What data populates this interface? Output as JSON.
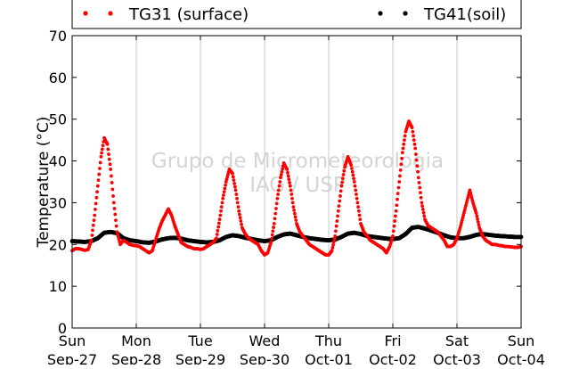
{
  "chart_data": {
    "type": "scatter",
    "ylabel": "Temperature (°C)",
    "ylim": [
      0,
      70
    ],
    "yticks": [
      0,
      10,
      20,
      30,
      40,
      50,
      60,
      70
    ],
    "xlim_days": [
      0,
      7
    ],
    "xtick_labels": [
      {
        "day": "Sun",
        "date": "Sep-27"
      },
      {
        "day": "Mon",
        "date": "Sep-28"
      },
      {
        "day": "Tue",
        "date": "Sep-29"
      },
      {
        "day": "Wed",
        "date": "Sep-30"
      },
      {
        "day": "Thu",
        "date": "Oct-01"
      },
      {
        "day": "Fri",
        "date": "Oct-02"
      },
      {
        "day": "Sat",
        "date": "Oct-03"
      },
      {
        "day": "Sun",
        "date": "Oct-04"
      }
    ],
    "grid": "vertical",
    "legend_placement": "top",
    "watermark": [
      "Grupo de Micrometeorologia",
      "IAG / USP"
    ],
    "series": [
      {
        "name": "TG31 (surface)",
        "color": "#ff0000",
        "points": [
          [
            0.0,
            18.5
          ],
          [
            0.05,
            19.0
          ],
          [
            0.1,
            19.0
          ],
          [
            0.15,
            18.8
          ],
          [
            0.2,
            18.6
          ],
          [
            0.25,
            18.8
          ],
          [
            0.3,
            21.0
          ],
          [
            0.35,
            27.0
          ],
          [
            0.4,
            34.0
          ],
          [
            0.45,
            41.0
          ],
          [
            0.5,
            45.5
          ],
          [
            0.55,
            44.0
          ],
          [
            0.6,
            38.0
          ],
          [
            0.65,
            30.0
          ],
          [
            0.7,
            23.0
          ],
          [
            0.75,
            20.0
          ],
          [
            0.8,
            21.0
          ],
          [
            0.85,
            20.5
          ],
          [
            0.9,
            20.0
          ],
          [
            0.95,
            19.8
          ],
          [
            1.0,
            19.7
          ],
          [
            1.05,
            19.5
          ],
          [
            1.1,
            19.0
          ],
          [
            1.15,
            18.5
          ],
          [
            1.2,
            18.0
          ],
          [
            1.25,
            18.5
          ],
          [
            1.3,
            21.0
          ],
          [
            1.35,
            23.5
          ],
          [
            1.4,
            25.5
          ],
          [
            1.45,
            27.0
          ],
          [
            1.5,
            28.5
          ],
          [
            1.55,
            27.0
          ],
          [
            1.6,
            24.5
          ],
          [
            1.65,
            22.5
          ],
          [
            1.7,
            20.5
          ],
          [
            1.75,
            20.0
          ],
          [
            1.8,
            19.5
          ],
          [
            1.85,
            19.3
          ],
          [
            1.9,
            19.0
          ],
          [
            1.95,
            19.0
          ],
          [
            2.0,
            18.8
          ],
          [
            2.05,
            19.0
          ],
          [
            2.1,
            19.5
          ],
          [
            2.15,
            20.0
          ],
          [
            2.2,
            20.5
          ],
          [
            2.25,
            21.5
          ],
          [
            2.3,
            26.0
          ],
          [
            2.35,
            31.0
          ],
          [
            2.4,
            35.0
          ],
          [
            2.45,
            38.0
          ],
          [
            2.5,
            37.0
          ],
          [
            2.55,
            33.0
          ],
          [
            2.6,
            28.0
          ],
          [
            2.65,
            24.0
          ],
          [
            2.7,
            22.5
          ],
          [
            2.75,
            21.5
          ],
          [
            2.8,
            21.0
          ],
          [
            2.85,
            20.5
          ],
          [
            2.9,
            20.0
          ],
          [
            2.95,
            18.5
          ],
          [
            3.0,
            17.5
          ],
          [
            3.05,
            18.0
          ],
          [
            3.1,
            20.5
          ],
          [
            3.15,
            25.0
          ],
          [
            3.2,
            31.0
          ],
          [
            3.25,
            36.0
          ],
          [
            3.3,
            39.5
          ],
          [
            3.35,
            38.0
          ],
          [
            3.4,
            34.0
          ],
          [
            3.45,
            29.0
          ],
          [
            3.5,
            25.0
          ],
          [
            3.55,
            23.0
          ],
          [
            3.6,
            22.0
          ],
          [
            3.65,
            21.0
          ],
          [
            3.7,
            20.0
          ],
          [
            3.75,
            19.5
          ],
          [
            3.8,
            19.0
          ],
          [
            3.85,
            18.5
          ],
          [
            3.9,
            18.0
          ],
          [
            3.95,
            17.5
          ],
          [
            4.0,
            17.5
          ],
          [
            4.05,
            18.5
          ],
          [
            4.1,
            22.0
          ],
          [
            4.15,
            28.0
          ],
          [
            4.2,
            34.0
          ],
          [
            4.25,
            38.5
          ],
          [
            4.3,
            41.0
          ],
          [
            4.35,
            39.0
          ],
          [
            4.4,
            35.0
          ],
          [
            4.45,
            30.0
          ],
          [
            4.5,
            25.0
          ],
          [
            4.55,
            23.0
          ],
          [
            4.6,
            22.0
          ],
          [
            4.65,
            21.0
          ],
          [
            4.7,
            20.5
          ],
          [
            4.75,
            20.0
          ],
          [
            4.8,
            19.5
          ],
          [
            4.85,
            19.0
          ],
          [
            4.9,
            18.0
          ],
          [
            4.95,
            19.5
          ],
          [
            5.0,
            22.0
          ],
          [
            5.05,
            28.0
          ],
          [
            5.1,
            35.0
          ],
          [
            5.15,
            42.0
          ],
          [
            5.2,
            47.0
          ],
          [
            5.25,
            49.5
          ],
          [
            5.3,
            48.0
          ],
          [
            5.35,
            43.0
          ],
          [
            5.4,
            36.0
          ],
          [
            5.45,
            30.0
          ],
          [
            5.5,
            26.0
          ],
          [
            5.55,
            24.5
          ],
          [
            5.6,
            24.0
          ],
          [
            5.65,
            23.5
          ],
          [
            5.7,
            23.0
          ],
          [
            5.75,
            22.0
          ],
          [
            5.8,
            21.0
          ],
          [
            5.85,
            19.5
          ],
          [
            5.9,
            19.5
          ],
          [
            5.95,
            20.0
          ],
          [
            6.0,
            21.5
          ],
          [
            6.05,
            24.0
          ],
          [
            6.1,
            27.0
          ],
          [
            6.15,
            30.0
          ],
          [
            6.2,
            33.0
          ],
          [
            6.25,
            30.0
          ],
          [
            6.3,
            27.5
          ],
          [
            6.35,
            24.0
          ],
          [
            6.4,
            22.0
          ],
          [
            6.45,
            21.0
          ],
          [
            6.5,
            20.5
          ],
          [
            6.55,
            20.0
          ],
          [
            6.6,
            20.0
          ],
          [
            6.65,
            19.8
          ],
          [
            6.7,
            19.7
          ],
          [
            6.75,
            19.5
          ],
          [
            6.8,
            19.5
          ],
          [
            6.85,
            19.4
          ],
          [
            6.9,
            19.3
          ],
          [
            6.95,
            19.3
          ],
          [
            7.0,
            19.5
          ]
        ]
      },
      {
        "name": "TG41(soil)",
        "color": "#000000",
        "points": [
          [
            0.0,
            20.8
          ],
          [
            0.1,
            20.7
          ],
          [
            0.2,
            20.6
          ],
          [
            0.3,
            20.8
          ],
          [
            0.4,
            21.5
          ],
          [
            0.5,
            22.8
          ],
          [
            0.6,
            23.0
          ],
          [
            0.7,
            22.7
          ],
          [
            0.8,
            21.5
          ],
          [
            0.9,
            21.0
          ],
          [
            1.0,
            20.8
          ],
          [
            1.1,
            20.5
          ],
          [
            1.2,
            20.4
          ],
          [
            1.3,
            20.7
          ],
          [
            1.4,
            21.2
          ],
          [
            1.5,
            21.5
          ],
          [
            1.6,
            21.6
          ],
          [
            1.7,
            21.4
          ],
          [
            1.8,
            21.0
          ],
          [
            1.9,
            20.8
          ],
          [
            2.0,
            20.6
          ],
          [
            2.1,
            20.5
          ],
          [
            2.2,
            20.6
          ],
          [
            2.3,
            21.0
          ],
          [
            2.4,
            21.8
          ],
          [
            2.5,
            22.2
          ],
          [
            2.6,
            22.0
          ],
          [
            2.7,
            21.6
          ],
          [
            2.8,
            21.3
          ],
          [
            2.9,
            21.0
          ],
          [
            3.0,
            20.8
          ],
          [
            3.1,
            21.0
          ],
          [
            3.2,
            21.8
          ],
          [
            3.3,
            22.4
          ],
          [
            3.4,
            22.6
          ],
          [
            3.5,
            22.2
          ],
          [
            3.6,
            21.8
          ],
          [
            3.7,
            21.5
          ],
          [
            3.8,
            21.3
          ],
          [
            3.9,
            21.1
          ],
          [
            4.0,
            21.0
          ],
          [
            4.1,
            21.2
          ],
          [
            4.2,
            21.8
          ],
          [
            4.3,
            22.6
          ],
          [
            4.4,
            22.8
          ],
          [
            4.5,
            22.5
          ],
          [
            4.6,
            22.0
          ],
          [
            4.7,
            21.8
          ],
          [
            4.8,
            21.6
          ],
          [
            4.9,
            21.4
          ],
          [
            5.0,
            21.3
          ],
          [
            5.1,
            21.5
          ],
          [
            5.2,
            22.5
          ],
          [
            5.3,
            24.0
          ],
          [
            5.4,
            24.2
          ],
          [
            5.5,
            23.8
          ],
          [
            5.6,
            23.3
          ],
          [
            5.7,
            22.8
          ],
          [
            5.8,
            22.2
          ],
          [
            5.9,
            21.7
          ],
          [
            6.0,
            21.5
          ],
          [
            6.1,
            21.5
          ],
          [
            6.2,
            21.8
          ],
          [
            6.3,
            22.3
          ],
          [
            6.4,
            22.5
          ],
          [
            6.5,
            22.3
          ],
          [
            6.6,
            22.1
          ],
          [
            6.7,
            22.0
          ],
          [
            6.8,
            21.9
          ],
          [
            6.9,
            21.8
          ],
          [
            7.0,
            21.8
          ]
        ]
      }
    ]
  }
}
